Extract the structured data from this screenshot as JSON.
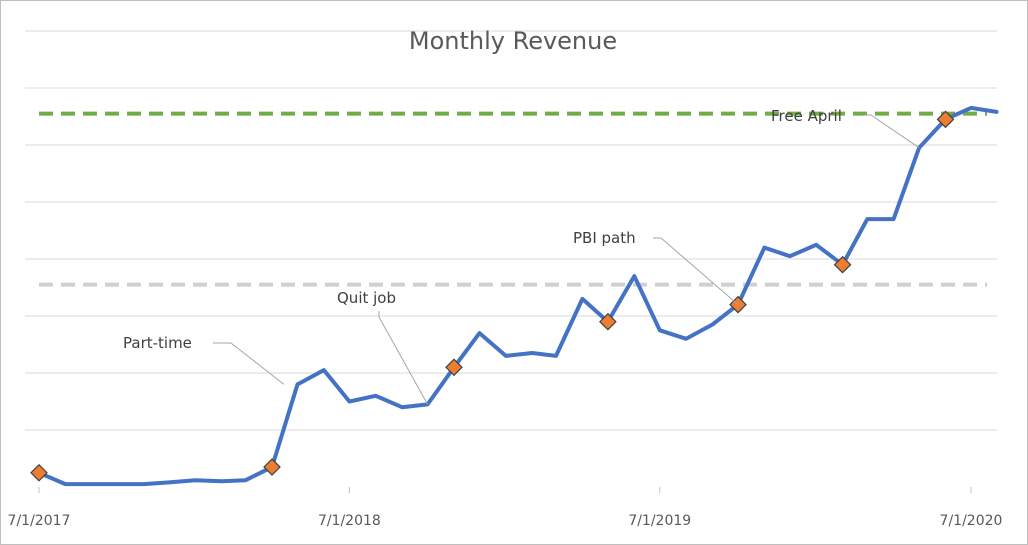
{
  "chart_data": {
    "type": "line",
    "title": "Monthly Revenue",
    "xlabel": "",
    "ylabel": "",
    "x_range": [
      "2017-07-01",
      "2020-07-01"
    ],
    "y_range": [
      0,
      10
    ],
    "grid": true,
    "x_ticks": [
      {
        "date": "2017-07-01",
        "label": "7/1/2017"
      },
      {
        "date": "2018-07-01",
        "label": "7/1/2018"
      },
      {
        "date": "2019-07-01",
        "label": "7/1/2019"
      },
      {
        "date": "2020-07-01",
        "label": "7/1/2020"
      }
    ],
    "y_gridlines": [
      1,
      2,
      3,
      4,
      5,
      6,
      7,
      8,
      9
    ],
    "series": [
      {
        "color": "#4472c4",
        "points": [
          {
            "x": "2017-07-01",
            "y": 0.25
          },
          {
            "x": "2017-08-01",
            "y": 0.05
          },
          {
            "x": "2017-09-01",
            "y": 0.05
          },
          {
            "x": "2017-10-01",
            "y": 0.05
          },
          {
            "x": "2017-11-01",
            "y": 0.05
          },
          {
            "x": "2017-12-01",
            "y": 0.08
          },
          {
            "x": "2018-01-01",
            "y": 0.12
          },
          {
            "x": "2018-02-01",
            "y": 0.1
          },
          {
            "x": "2018-03-01",
            "y": 0.12
          },
          {
            "x": "2018-04-01",
            "y": 0.35
          },
          {
            "x": "2018-05-01",
            "y": 1.8
          },
          {
            "x": "2018-06-01",
            "y": 2.05
          },
          {
            "x": "2018-07-01",
            "y": 1.5
          },
          {
            "x": "2018-08-01",
            "y": 1.6
          },
          {
            "x": "2018-09-01",
            "y": 1.4
          },
          {
            "x": "2018-10-01",
            "y": 1.45
          },
          {
            "x": "2018-11-01",
            "y": 2.1
          },
          {
            "x": "2018-12-01",
            "y": 2.7
          },
          {
            "x": "2019-01-01",
            "y": 2.3
          },
          {
            "x": "2019-02-01",
            "y": 2.35
          },
          {
            "x": "2019-03-01",
            "y": 2.3
          },
          {
            "x": "2019-04-01",
            "y": 3.3
          },
          {
            "x": "2019-05-01",
            "y": 2.9
          },
          {
            "x": "2019-06-01",
            "y": 3.7
          },
          {
            "x": "2019-07-01",
            "y": 2.75
          },
          {
            "x": "2019-08-01",
            "y": 2.6
          },
          {
            "x": "2019-09-01",
            "y": 2.85
          },
          {
            "x": "2019-10-01",
            "y": 3.2
          },
          {
            "x": "2019-11-01",
            "y": 4.2
          },
          {
            "x": "2019-12-01",
            "y": 4.05
          },
          {
            "x": "2020-01-01",
            "y": 4.25
          },
          {
            "x": "2020-02-01",
            "y": 3.9
          },
          {
            "x": "2020-03-01",
            "y": 4.7
          },
          {
            "x": "2020-04-01",
            "y": 4.7
          },
          {
            "x": "2020-05-01",
            "y": 5.95
          },
          {
            "x": "2020-06-01",
            "y": 6.45
          },
          {
            "x": "2020-07-01",
            "y": 6.65
          },
          {
            "x": "2020-07-31",
            "y": 6.58
          }
        ]
      }
    ],
    "reference_lines": [
      {
        "y": 6.55,
        "color": "#70ad47",
        "style": "dashed"
      },
      {
        "y": 3.55,
        "color": "#d0d0d0",
        "style": "dashed"
      }
    ],
    "marked_points": [
      {
        "x": "2017-07-01",
        "y": 0.25
      },
      {
        "x": "2018-04-01",
        "y": 0.35
      },
      {
        "x": "2018-11-01",
        "y": 2.1
      },
      {
        "x": "2019-05-01",
        "y": 2.9
      },
      {
        "x": "2019-10-01",
        "y": 3.2
      },
      {
        "x": "2020-02-01",
        "y": 3.9
      },
      {
        "x": "2020-06-01",
        "y": 6.45
      }
    ],
    "marker_color": "#ed7d31",
    "annotations": [
      {
        "text": "Part-time",
        "x": "2018-04-15",
        "y": 1.8
      },
      {
        "text": "Quit job",
        "x": "2018-10-01",
        "y": 1.45
      },
      {
        "text": "PBI path",
        "x": "2019-10-01",
        "y": 3.2
      },
      {
        "text": "Free April",
        "x": "2020-05-01",
        "y": 5.95
      }
    ]
  }
}
